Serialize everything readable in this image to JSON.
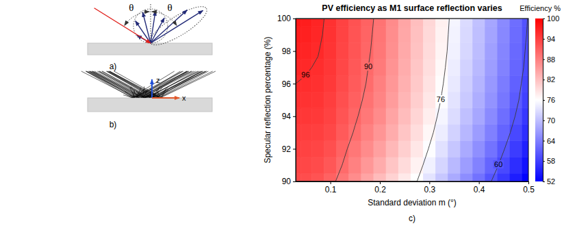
{
  "figure": {
    "panel_a": {
      "label": "a)",
      "angle_labels": [
        "θ",
        "θ"
      ]
    },
    "panel_b": {
      "label": "b)",
      "axis_labels": [
        "z",
        "x"
      ]
    },
    "panel_c": {
      "label": "c)"
    }
  },
  "chart_data": {
    "type": "contour",
    "title": "PV efficiency as M1 surface reflection varies",
    "x_label": "Standard deviation m (°)",
    "y_label": "Specular reflection percentage (%)",
    "xlim": [
      0.03,
      0.5
    ],
    "ylim": [
      90,
      100
    ],
    "xticks": [
      0.1,
      0.2,
      0.3,
      0.4,
      0.5
    ],
    "yticks": [
      90,
      92,
      94,
      96,
      98,
      100
    ],
    "x": [
      0.03,
      0.05,
      0.075,
      0.1,
      0.125,
      0.15,
      0.175,
      0.2,
      0.225,
      0.25,
      0.275,
      0.3,
      0.325,
      0.35,
      0.375,
      0.4,
      0.425,
      0.45,
      0.475,
      0.5
    ],
    "y": [
      90,
      91,
      92,
      93,
      94,
      95,
      96,
      97,
      98,
      99,
      100
    ],
    "values": [
      [
        93,
        92.8,
        92.2,
        90.8,
        88.9,
        86.8,
        84.6,
        82.4,
        80.2,
        78.1,
        76,
        73.4,
        70.7,
        68,
        65.3,
        62.7,
        60,
        57.4,
        54.7,
        52.1
      ],
      [
        93.5,
        93.3,
        92.9,
        91.8,
        89.9,
        87.9,
        85.8,
        83.8,
        81.5,
        79.4,
        77.2,
        74.7,
        72,
        69.4,
        66.8,
        64.2,
        61.5,
        58.9,
        56.2,
        53.6
      ],
      [
        94,
        93.8,
        93.5,
        92.6,
        90.7,
        88.8,
        86.9,
        84.9,
        82.7,
        80.5,
        78.3,
        75.8,
        73.2,
        70.6,
        68,
        65.5,
        62.8,
        60.2,
        57.6,
        55
      ],
      [
        94.5,
        94.3,
        94.1,
        93.3,
        91.5,
        89.7,
        87.9,
        86,
        83.8,
        81.5,
        79.2,
        76.8,
        74.3,
        71.8,
        69.2,
        66.7,
        64,
        61.4,
        58.8,
        56.2
      ],
      [
        95,
        94.8,
        94.6,
        93.8,
        92.1,
        90.4,
        88.7,
        86.9,
        84.6,
        82.3,
        80,
        77.6,
        75.1,
        72.7,
        70.1,
        67.7,
        65,
        62.4,
        59.8,
        57.2
      ],
      [
        95.5,
        95.3,
        95.1,
        94.2,
        92.6,
        91,
        89.3,
        87.6,
        85.3,
        83,
        80.6,
        78.3,
        75.8,
        73.4,
        70.9,
        68.4,
        65.8,
        63.2,
        60.6,
        58
      ],
      [
        96,
        95.8,
        95.5,
        94.6,
        93,
        91.4,
        89.8,
        88,
        85.8,
        83.4,
        81.1,
        78.7,
        76.3,
        73.9,
        71.4,
        68.9,
        66.3,
        63.7,
        61.1,
        58.5
      ],
      [
        96.5,
        96.2,
        95.8,
        94.9,
        93.3,
        91.7,
        90.1,
        88.5,
        86.2,
        83.8,
        81.4,
        79.1,
        76.7,
        74.3,
        71.8,
        69.4,
        66.8,
        64.2,
        61.6,
        59
      ],
      [
        97,
        96.6,
        96.1,
        95.1,
        93.5,
        92,
        90.4,
        88.8,
        86.5,
        84.1,
        81.7,
        79.4,
        77,
        74.7,
        72.2,
        69.8,
        67.1,
        64.5,
        61.9,
        59.3
      ],
      [
        97.4,
        97,
        96.4,
        95.3,
        93.7,
        92.1,
        90.6,
        89,
        86.7,
        84.3,
        81.9,
        79.6,
        77.2,
        74.9,
        72.4,
        70,
        67.4,
        64.8,
        62.2,
        59.6
      ],
      [
        97.8,
        97.3,
        96.6,
        95.4,
        93.8,
        92.3,
        90.8,
        89.2,
        86.9,
        84.5,
        82.1,
        79.8,
        77.4,
        75.1,
        72.6,
        70.2,
        67.6,
        65,
        62.4,
        59.8
      ]
    ],
    "contour_levels": [
      60,
      76,
      90,
      96
    ],
    "color_bar": {
      "title": "Efficiency %",
      "range": [
        52,
        100
      ],
      "ticks": [
        52,
        58,
        64,
        70,
        76,
        82,
        88,
        94,
        100
      ],
      "colors": [
        "#0000ff",
        "#ffffff",
        "#ff0000"
      ]
    }
  }
}
